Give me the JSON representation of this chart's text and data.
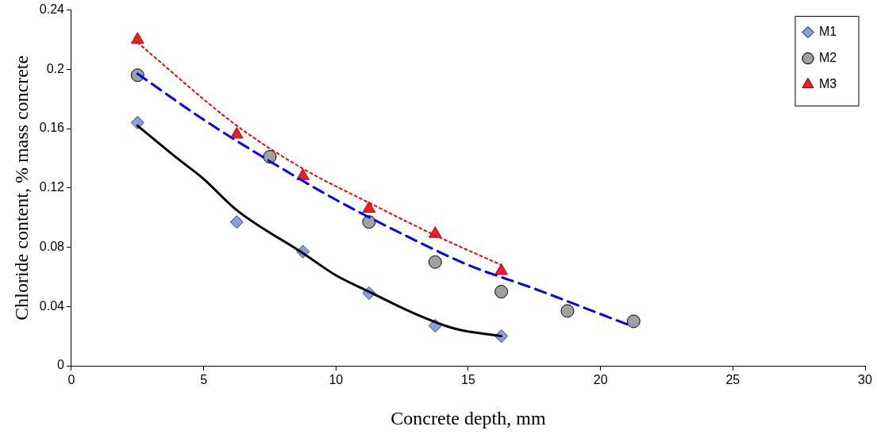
{
  "chart_data": {
    "type": "scatter",
    "xlabel": "Concrete depth, mm",
    "ylabel": "Chloride content, % mass concrete",
    "xlim": [
      0,
      30
    ],
    "xticks": [
      0,
      5,
      10,
      15,
      20,
      25,
      30
    ],
    "ylim": [
      0,
      0.24
    ],
    "yticks": [
      0,
      0.04,
      0.08,
      0.12,
      0.16,
      0.2,
      0.24
    ],
    "grid": false,
    "legend": "top right",
    "series": [
      {
        "name": "M1",
        "marker": "diamond",
        "color": "#8e9fd8",
        "x": [
          2.5,
          6.25,
          8.75,
          11.25,
          13.75,
          16.25
        ],
        "values": [
          0.164,
          0.097,
          0.077,
          0.049,
          0.027,
          0.02
        ]
      },
      {
        "name": "M2",
        "marker": "circle",
        "color": "#a0a0a0",
        "x": [
          2.5,
          7.5,
          11.25,
          13.75,
          16.25,
          18.75,
          21.25
        ],
        "values": [
          0.196,
          0.141,
          0.097,
          0.07,
          0.05,
          0.037,
          0.03
        ]
      },
      {
        "name": "M3",
        "marker": "triangle",
        "color": "#e8202a",
        "x": [
          2.5,
          6.25,
          8.75,
          11.25,
          13.75,
          16.25
        ],
        "values": [
          0.22,
          0.156,
          0.128,
          0.106,
          0.089,
          0.064
        ]
      },
      {
        "type": "line",
        "marker": "none",
        "line_style": "solid",
        "color": "#000000",
        "x": [
          2.5,
          4,
          5,
          6.25,
          8.75,
          10,
          11.25,
          13,
          14.5,
          16.25
        ],
        "values": [
          0.162,
          0.14,
          0.126,
          0.105,
          0.076,
          0.061,
          0.05,
          0.035,
          0.025,
          0.02
        ]
      },
      {
        "type": "line",
        "marker": "none",
        "line_style": "dashed",
        "color": "#0000ff",
        "x": [
          2.5,
          5,
          7.5,
          10,
          12.5,
          15,
          17.5,
          21
        ],
        "values": [
          0.197,
          0.166,
          0.138,
          0.112,
          0.089,
          0.068,
          0.052,
          0.028
        ]
      },
      {
        "type": "line",
        "marker": "none",
        "line_style": "dotted",
        "color": "#ff0000",
        "x": [
          2.5,
          6.25,
          8.75,
          11.25,
          13.75,
          16.25
        ],
        "values": [
          0.218,
          0.162,
          0.133,
          0.11,
          0.088,
          0.068
        ]
      }
    ]
  }
}
